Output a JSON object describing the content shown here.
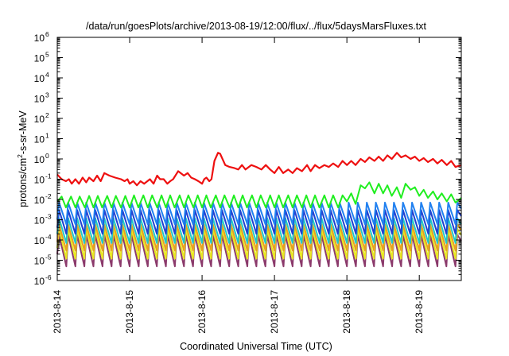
{
  "chart_data": {
    "type": "line",
    "title": "/data/run/goesPlots/archive/2013-08-19/12:00/flux/../flux/5daysMarsFluxes.txt",
    "xlabel": "Coordinated Universal Time (UTC)",
    "ylabel_parts": [
      "protons/cm",
      "2",
      "-s-sr-MeV"
    ],
    "yscale": "log",
    "ylim": [
      1e-06,
      1000000.0
    ],
    "xlim": [
      0,
      5.58
    ],
    "x_unit": "days since 2013-8-14 00:00 UTC",
    "grid": false,
    "legend": "none",
    "x_ticks": [
      {
        "x": 0,
        "label": "2013-8-14"
      },
      {
        "x": 1,
        "label": "2013-8-15"
      },
      {
        "x": 2,
        "label": "2013-8-16"
      },
      {
        "x": 3,
        "label": "2013-8-17"
      },
      {
        "x": 4,
        "label": "2013-8-18"
      },
      {
        "x": 5,
        "label": "2013-8-19"
      }
    ],
    "y_ticks": [
      {
        "value": 1e-06,
        "base": "10",
        "exp": "-6"
      },
      {
        "value": 1e-05,
        "base": "10",
        "exp": "-5"
      },
      {
        "value": 0.0001,
        "base": "10",
        "exp": "-4"
      },
      {
        "value": 0.001,
        "base": "10",
        "exp": "-3"
      },
      {
        "value": 0.01,
        "base": "10",
        "exp": "-2"
      },
      {
        "value": 0.1,
        "base": "10",
        "exp": "-1"
      },
      {
        "value": 1,
        "base": "10",
        "exp": "0"
      },
      {
        "value": 10,
        "base": "10",
        "exp": "1"
      },
      {
        "value": 100,
        "base": "10",
        "exp": "2"
      },
      {
        "value": 1000,
        "base": "10",
        "exp": "3"
      },
      {
        "value": 10000,
        "base": "10",
        "exp": "4"
      },
      {
        "value": 100000,
        "base": "10",
        "exp": "5"
      },
      {
        "value": 1000000,
        "base": "10",
        "exp": "6"
      }
    ],
    "series": [
      {
        "color": "#8b3a6b",
        "pattern": {
          "period": 0.125,
          "phase": 0.0,
          "high": 0.00018,
          "low": 5e-06,
          "start_value": 2e-05
        }
      },
      {
        "color": "#e8e820",
        "pattern": {
          "period": 0.125,
          "phase": 0.0,
          "high": 0.00035,
          "low": 1.2e-05,
          "start_value": 4e-05
        }
      },
      {
        "color": "#e8a020",
        "pattern": {
          "period": 0.125,
          "phase": 0.0,
          "high": 0.0006,
          "low": 3e-05,
          "start_value": 8e-05
        }
      },
      {
        "color": "#20c8c8",
        "pattern": {
          "period": 0.125,
          "phase": 0.0,
          "high": 0.0012,
          "low": 7e-05,
          "start_value": 0.0002
        }
      },
      {
        "color": "#2040d0",
        "pattern": {
          "period": 0.125,
          "phase": 0.0,
          "high": 0.003,
          "low": 0.0002,
          "start_value": 0.0004
        }
      },
      {
        "color": "#2080f0",
        "pattern": {
          "period": 0.125,
          "phase": 0.0,
          "high": 0.007,
          "low": 0.0006,
          "start_value": 0.001
        }
      },
      {
        "color": "#20ee20",
        "points": [
          [
            0.0,
            0.008
          ],
          [
            0.06,
            0.014
          ],
          [
            0.12,
            0.004
          ],
          [
            0.19,
            0.014
          ],
          [
            0.25,
            0.004
          ],
          [
            0.31,
            0.014
          ],
          [
            0.38,
            0.004
          ],
          [
            0.44,
            0.015
          ],
          [
            0.5,
            0.004
          ],
          [
            0.56,
            0.015
          ],
          [
            0.62,
            0.004
          ],
          [
            0.69,
            0.015
          ],
          [
            0.75,
            0.004
          ],
          [
            0.81,
            0.015
          ],
          [
            0.88,
            0.004
          ],
          [
            0.94,
            0.015
          ],
          [
            1.0,
            0.004
          ],
          [
            1.06,
            0.016
          ],
          [
            1.12,
            0.004
          ],
          [
            1.19,
            0.016
          ],
          [
            1.25,
            0.004
          ],
          [
            1.31,
            0.016
          ],
          [
            1.38,
            0.004
          ],
          [
            1.44,
            0.016
          ],
          [
            1.5,
            0.004
          ],
          [
            1.56,
            0.016
          ],
          [
            1.62,
            0.004
          ],
          [
            1.69,
            0.016
          ],
          [
            1.75,
            0.004
          ],
          [
            1.81,
            0.016
          ],
          [
            1.88,
            0.004
          ],
          [
            1.94,
            0.016
          ],
          [
            2.0,
            0.004
          ],
          [
            2.06,
            0.016
          ],
          [
            2.12,
            0.004
          ],
          [
            2.19,
            0.016
          ],
          [
            2.25,
            0.004
          ],
          [
            2.31,
            0.016
          ],
          [
            2.38,
            0.004
          ],
          [
            2.44,
            0.016
          ],
          [
            2.5,
            0.004
          ],
          [
            2.56,
            0.016
          ],
          [
            2.62,
            0.004
          ],
          [
            2.69,
            0.016
          ],
          [
            2.75,
            0.004
          ],
          [
            2.81,
            0.016
          ],
          [
            2.88,
            0.004
          ],
          [
            2.94,
            0.016
          ],
          [
            3.0,
            0.004
          ],
          [
            3.06,
            0.016
          ],
          [
            3.12,
            0.004
          ],
          [
            3.19,
            0.016
          ],
          [
            3.25,
            0.004
          ],
          [
            3.31,
            0.016
          ],
          [
            3.38,
            0.004
          ],
          [
            3.44,
            0.016
          ],
          [
            3.5,
            0.004
          ],
          [
            3.56,
            0.016
          ],
          [
            3.62,
            0.004
          ],
          [
            3.69,
            0.016
          ],
          [
            3.75,
            0.004
          ],
          [
            3.81,
            0.016
          ],
          [
            3.88,
            0.004
          ],
          [
            3.94,
            0.016
          ],
          [
            4.0,
            0.008
          ],
          [
            4.06,
            0.02
          ],
          [
            4.12,
            0.006
          ],
          [
            4.19,
            0.05
          ],
          [
            4.25,
            0.035
          ],
          [
            4.31,
            0.07
          ],
          [
            4.38,
            0.02
          ],
          [
            4.44,
            0.06
          ],
          [
            4.5,
            0.02
          ],
          [
            4.56,
            0.05
          ],
          [
            4.62,
            0.015
          ],
          [
            4.69,
            0.04
          ],
          [
            4.75,
            0.012
          ],
          [
            4.81,
            0.06
          ],
          [
            4.88,
            0.03
          ],
          [
            4.94,
            0.04
          ],
          [
            5.0,
            0.015
          ],
          [
            5.06,
            0.03
          ],
          [
            5.12,
            0.012
          ],
          [
            5.19,
            0.025
          ],
          [
            5.25,
            0.01
          ],
          [
            5.31,
            0.02
          ],
          [
            5.38,
            0.008
          ],
          [
            5.44,
            0.018
          ],
          [
            5.5,
            0.007
          ],
          [
            5.58,
            0.012
          ]
        ]
      },
      {
        "color": "#ee1010",
        "points": [
          [
            0.0,
            0.17
          ],
          [
            0.06,
            0.1
          ],
          [
            0.12,
            0.08
          ],
          [
            0.16,
            0.1
          ],
          [
            0.2,
            0.06
          ],
          [
            0.25,
            0.1
          ],
          [
            0.3,
            0.06
          ],
          [
            0.35,
            0.12
          ],
          [
            0.4,
            0.07
          ],
          [
            0.44,
            0.12
          ],
          [
            0.5,
            0.08
          ],
          [
            0.55,
            0.15
          ],
          [
            0.6,
            0.08
          ],
          [
            0.65,
            0.2
          ],
          [
            0.72,
            0.15
          ],
          [
            0.8,
            0.12
          ],
          [
            0.88,
            0.1
          ],
          [
            0.93,
            0.08
          ],
          [
            0.97,
            0.1
          ],
          [
            1.0,
            0.06
          ],
          [
            1.05,
            0.08
          ],
          [
            1.1,
            0.05
          ],
          [
            1.15,
            0.08
          ],
          [
            1.2,
            0.06
          ],
          [
            1.28,
            0.1
          ],
          [
            1.33,
            0.06
          ],
          [
            1.38,
            0.15
          ],
          [
            1.42,
            0.1
          ],
          [
            1.47,
            0.1
          ],
          [
            1.52,
            0.06
          ],
          [
            1.56,
            0.08
          ],
          [
            1.6,
            0.1
          ],
          [
            1.67,
            0.25
          ],
          [
            1.75,
            0.15
          ],
          [
            1.8,
            0.2
          ],
          [
            1.85,
            0.12
          ],
          [
            1.9,
            0.1
          ],
          [
            1.95,
            0.08
          ],
          [
            2.0,
            0.06
          ],
          [
            2.03,
            0.1
          ],
          [
            2.06,
            0.12
          ],
          [
            2.1,
            0.08
          ],
          [
            2.13,
            0.1
          ],
          [
            2.17,
            0.8
          ],
          [
            2.22,
            2.0
          ],
          [
            2.25,
            1.8
          ],
          [
            2.32,
            0.5
          ],
          [
            2.38,
            0.4
          ],
          [
            2.45,
            0.35
          ],
          [
            2.5,
            0.3
          ],
          [
            2.55,
            0.5
          ],
          [
            2.6,
            0.3
          ],
          [
            2.68,
            0.5
          ],
          [
            2.75,
            0.4
          ],
          [
            2.82,
            0.3
          ],
          [
            2.88,
            0.5
          ],
          [
            2.94,
            0.3
          ],
          [
            3.0,
            0.2
          ],
          [
            3.06,
            0.4
          ],
          [
            3.12,
            0.2
          ],
          [
            3.19,
            0.3
          ],
          [
            3.25,
            0.2
          ],
          [
            3.31,
            0.35
          ],
          [
            3.38,
            0.25
          ],
          [
            3.45,
            0.5
          ],
          [
            3.5,
            0.25
          ],
          [
            3.56,
            0.5
          ],
          [
            3.62,
            0.35
          ],
          [
            3.69,
            0.5
          ],
          [
            3.75,
            0.4
          ],
          [
            3.81,
            0.6
          ],
          [
            3.88,
            0.4
          ],
          [
            3.94,
            0.8
          ],
          [
            4.0,
            0.5
          ],
          [
            4.06,
            0.8
          ],
          [
            4.12,
            0.5
          ],
          [
            4.19,
            1.0
          ],
          [
            4.25,
            0.7
          ],
          [
            4.31,
            1.2
          ],
          [
            4.38,
            0.8
          ],
          [
            4.44,
            1.3
          ],
          [
            4.5,
            0.8
          ],
          [
            4.56,
            1.5
          ],
          [
            4.62,
            1.0
          ],
          [
            4.69,
            2.0
          ],
          [
            4.75,
            1.2
          ],
          [
            4.81,
            1.5
          ],
          [
            4.88,
            1.0
          ],
          [
            4.94,
            1.3
          ],
          [
            5.0,
            0.8
          ],
          [
            5.06,
            1.1
          ],
          [
            5.12,
            0.7
          ],
          [
            5.19,
            1.0
          ],
          [
            5.25,
            0.6
          ],
          [
            5.31,
            0.9
          ],
          [
            5.38,
            0.5
          ],
          [
            5.44,
            0.8
          ],
          [
            5.5,
            0.4
          ],
          [
            5.58,
            0.5
          ]
        ]
      }
    ]
  }
}
